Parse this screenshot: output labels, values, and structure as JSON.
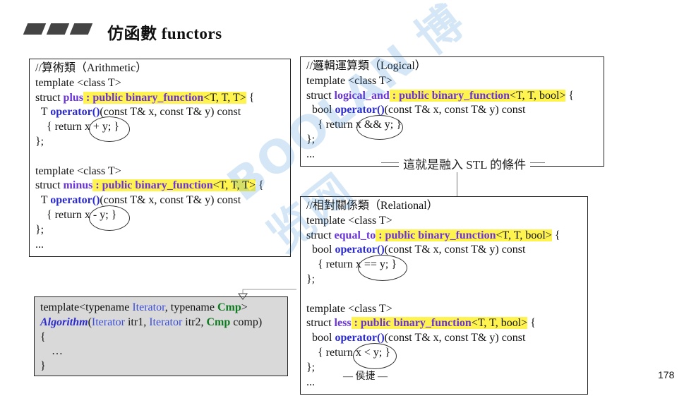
{
  "title": "仿函數 functors",
  "page_number": "178",
  "callout": "這就是融入 STL 的條件",
  "note": "— 侯捷 —",
  "arithmetic": {
    "comment": "//算術類（Arithmetic）",
    "plus": {
      "template": "template <class T>",
      "struct": "struct ",
      "name": "plus",
      "base": " : public binary_function",
      "base_args": "<T, T, T>",
      "brace": " {",
      "op_pre": "  T ",
      "op_name": "operator()",
      "op_post": "(const T& x, const T& y) const",
      "body": "    { return x + y; }",
      "close": "};"
    },
    "minus": {
      "template": "template <class T>",
      "struct": "struct ",
      "name": "minus",
      "base": " : public binary_function",
      "base_args": "<T, T, T>",
      "brace": " {",
      "op_pre": "  T ",
      "op_name": "operator()",
      "op_post": "(const T& x, const T& y) const",
      "body": "    { return x - y; }",
      "close": "};",
      "ellipsis": "..."
    }
  },
  "logical": {
    "comment": "//邏輯運算類（Logical）",
    "template": "template <class T>",
    "struct": "struct ",
    "name": "logical_and",
    "base": " : public binary_function",
    "base_args": "<T, T, bool>",
    "brace": " {",
    "op_pre": "  bool ",
    "op_name": "operator()",
    "op_post": "(const T& x, const T& y) const",
    "body": "    { return x && y; }",
    "close": "};",
    "ellipsis": "..."
  },
  "relational": {
    "comment": "//相對關係類（Relational）",
    "equal_to": {
      "template": "template <class T>",
      "struct": "struct ",
      "name": "equal_to",
      "base": " : public binary_function",
      "base_args": "<T, T, bool>",
      "brace": " {",
      "op_pre": "  bool ",
      "op_name": "operator()",
      "op_post": "(const T& x, const T& y) const",
      "body": "    { return x == y; }",
      "close": "};"
    },
    "less": {
      "template": "template <class T>",
      "struct": "struct ",
      "name": "less",
      "base": " : public binary_function",
      "base_args": "<T, T, bool>",
      "brace": " {",
      "op_pre": "  bool ",
      "op_name": "operator()",
      "op_post": "(const T& x, const T& y) const",
      "body": "    { return x < y; }",
      "close": "};",
      "ellipsis": "..."
    }
  },
  "algorithm": {
    "t1": "template<typename ",
    "iter": "Iterator",
    "t2": ", typename ",
    "cmp": "Cmp",
    "t3": ">",
    "algo": "Algorithm",
    "a1": "(",
    "a2": " itr1, ",
    "a3": " itr2, ",
    "a4": " comp)",
    "open": "{",
    "body": "    …",
    "close": "}"
  },
  "watermark": "BOOLAN 博览网",
  "colors": {
    "keyword": "#6a33d8",
    "operator": "#2b2bd0",
    "highlight": "#fff44f",
    "cmp": "#0c7a1e",
    "box_gray": "#d9d9d9"
  }
}
